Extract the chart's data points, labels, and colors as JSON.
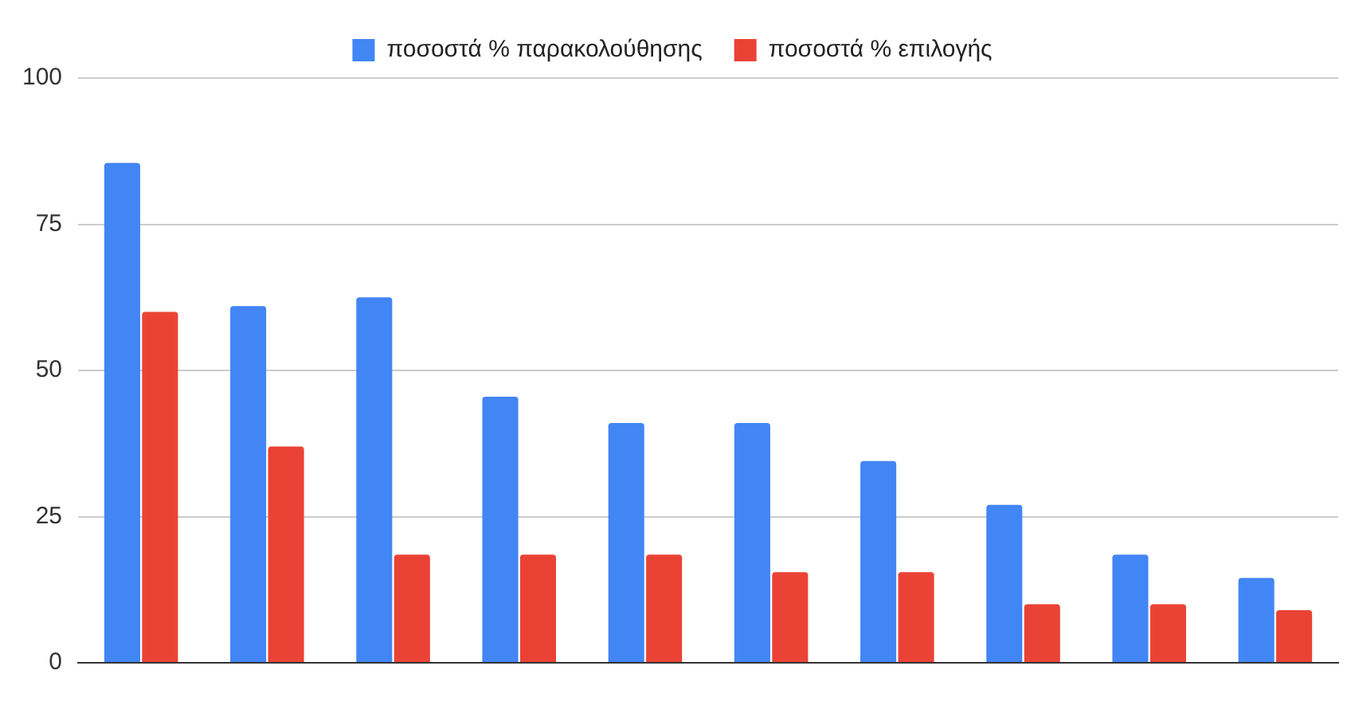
{
  "chart_data": {
    "type": "bar",
    "categories": [
      null,
      null,
      null,
      null,
      null,
      null,
      null,
      null,
      null,
      null
    ],
    "series": [
      {
        "name": "ποσοστά % παρακολούθησης",
        "color": "#4285f4",
        "values": [
          85.5,
          61,
          62.5,
          45.5,
          41,
          41,
          34.5,
          27,
          18.5,
          14.5
        ]
      },
      {
        "name": "ποσοστά % επιλογής",
        "color": "#ea4335",
        "values": [
          60,
          37,
          18.5,
          18.5,
          18.5,
          15.5,
          15.5,
          10,
          10,
          9
        ]
      }
    ],
    "ylim": [
      0,
      100
    ],
    "yticks": [
      0,
      25,
      50,
      75,
      100
    ],
    "grid": "y",
    "legend": "top"
  }
}
